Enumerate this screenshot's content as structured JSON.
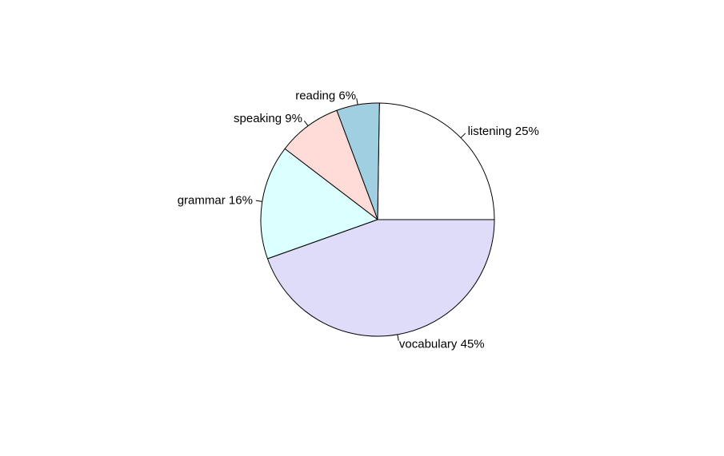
{
  "chart_data": {
    "type": "pie",
    "title": "",
    "slices": [
      {
        "label": "listening 25%",
        "value": 25,
        "color": "#ffffff"
      },
      {
        "label": "reading 6%",
        "value": 6,
        "color": "#9fcfe0"
      },
      {
        "label": "speaking 9%",
        "value": 9,
        "color": "#ffdcd8"
      },
      {
        "label": "grammar 16%",
        "value": 16,
        "color": "#dcffff"
      },
      {
        "label": "vocabulary 45%",
        "value": 45,
        "color": "#dedcf8"
      }
    ],
    "direction": "counterclockwise",
    "start_angle_deg": 0
  }
}
